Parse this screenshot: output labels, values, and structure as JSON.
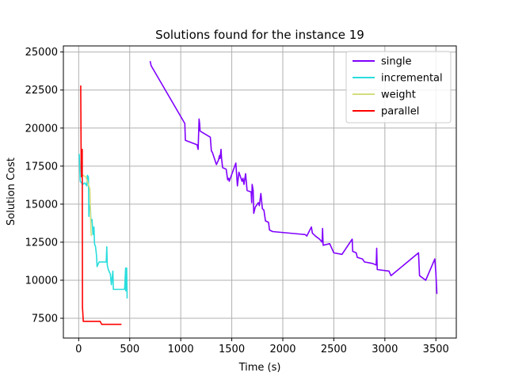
{
  "chart_data": {
    "type": "line",
    "title": "Solutions found for the instance 19",
    "xlabel": "Time (s)",
    "ylabel": "Solution Cost",
    "xlim": [
      -150,
      3700
    ],
    "ylim": [
      6200,
      25400
    ],
    "xticks": [
      0,
      500,
      1000,
      1500,
      2000,
      2500,
      3000,
      3500
    ],
    "yticks": [
      7500,
      10000,
      12500,
      15000,
      17500,
      20000,
      22500,
      25000
    ],
    "xtick_labels": [
      "0",
      "500",
      "1000",
      "1500",
      "2000",
      "2500",
      "3000",
      "3500"
    ],
    "ytick_labels": [
      "7500",
      "10000",
      "12500",
      "15000",
      "17500",
      "20000",
      "22500",
      "25000"
    ],
    "grid": true,
    "legend_position": "top-right",
    "series": [
      {
        "name": "single",
        "color": "#8000ff",
        "points": [
          [
            700,
            24400
          ],
          [
            710,
            24100
          ],
          [
            1040,
            20300
          ],
          [
            1045,
            19200
          ],
          [
            1160,
            18900
          ],
          [
            1170,
            18600
          ],
          [
            1180,
            20600
          ],
          [
            1185,
            20300
          ],
          [
            1190,
            19800
          ],
          [
            1290,
            19400
          ],
          [
            1300,
            18500
          ],
          [
            1310,
            18400
          ],
          [
            1350,
            17600
          ],
          [
            1370,
            17900
          ],
          [
            1380,
            18200
          ],
          [
            1385,
            18000
          ],
          [
            1395,
            18600
          ],
          [
            1400,
            18000
          ],
          [
            1410,
            17400
          ],
          [
            1445,
            17300
          ],
          [
            1460,
            16600
          ],
          [
            1470,
            16700
          ],
          [
            1475,
            16500
          ],
          [
            1540,
            17700
          ],
          [
            1555,
            16200
          ],
          [
            1570,
            17100
          ],
          [
            1600,
            16500
          ],
          [
            1610,
            16700
          ],
          [
            1620,
            16300
          ],
          [
            1635,
            17000
          ],
          [
            1650,
            15900
          ],
          [
            1690,
            15800
          ],
          [
            1695,
            15100
          ],
          [
            1700,
            16300
          ],
          [
            1710,
            15900
          ],
          [
            1715,
            14400
          ],
          [
            1730,
            14800
          ],
          [
            1760,
            15100
          ],
          [
            1770,
            14900
          ],
          [
            1785,
            15700
          ],
          [
            1800,
            14700
          ],
          [
            1815,
            14600
          ],
          [
            1830,
            13900
          ],
          [
            1860,
            13800
          ],
          [
            1870,
            13300
          ],
          [
            1900,
            13200
          ],
          [
            2220,
            13000
          ],
          [
            2235,
            12900
          ],
          [
            2250,
            13100
          ],
          [
            2280,
            13500
          ],
          [
            2290,
            13100
          ],
          [
            2320,
            12900
          ],
          [
            2360,
            12700
          ],
          [
            2385,
            12500
          ],
          [
            2390,
            13400
          ],
          [
            2395,
            12300
          ],
          [
            2460,
            12400
          ],
          [
            2500,
            11800
          ],
          [
            2580,
            11700
          ],
          [
            2670,
            12600
          ],
          [
            2680,
            12700
          ],
          [
            2685,
            11900
          ],
          [
            2720,
            11800
          ],
          [
            2730,
            11500
          ],
          [
            2780,
            11400
          ],
          [
            2800,
            11200
          ],
          [
            2880,
            11100
          ],
          [
            2915,
            11000
          ],
          [
            2920,
            12100
          ],
          [
            2925,
            10700
          ],
          [
            3040,
            10600
          ],
          [
            3060,
            10300
          ],
          [
            3330,
            11800
          ],
          [
            3340,
            10300
          ],
          [
            3400,
            10000
          ],
          [
            3490,
            11400
          ],
          [
            3500,
            10500
          ],
          [
            3510,
            9100
          ]
        ]
      },
      {
        "name": "incremental",
        "color": "#2adddd",
        "points": [
          [
            5,
            18300
          ],
          [
            15,
            16500
          ],
          [
            40,
            16300
          ],
          [
            60,
            16400
          ],
          [
            80,
            16200
          ],
          [
            85,
            16900
          ],
          [
            95,
            16800
          ],
          [
            100,
            14200
          ],
          [
            105,
            15000
          ],
          [
            115,
            14800
          ],
          [
            120,
            13900
          ],
          [
            130,
            14000
          ],
          [
            140,
            13000
          ],
          [
            145,
            13200
          ],
          [
            150,
            13500
          ],
          [
            155,
            12400
          ],
          [
            165,
            12200
          ],
          [
            175,
            11600
          ],
          [
            180,
            10900
          ],
          [
            200,
            11200
          ],
          [
            270,
            11200
          ],
          [
            275,
            12200
          ],
          [
            280,
            11000
          ],
          [
            290,
            10700
          ],
          [
            310,
            10400
          ],
          [
            320,
            9700
          ],
          [
            335,
            10600
          ],
          [
            340,
            9400
          ],
          [
            450,
            9400
          ],
          [
            460,
            10800
          ],
          [
            462,
            9300
          ],
          [
            470,
            10800
          ],
          [
            475,
            8800
          ]
        ]
      },
      {
        "name": "weight",
        "color": "#d4dd80",
        "points": [
          [
            20,
            17200
          ],
          [
            40,
            16900
          ],
          [
            70,
            16800
          ],
          [
            110,
            16000
          ],
          [
            115,
            14700
          ],
          [
            120,
            13200
          ],
          [
            125,
            12900
          ]
        ]
      },
      {
        "name": "parallel",
        "color": "#ff0000",
        "points": [
          [
            20,
            22800
          ],
          [
            25,
            17400
          ],
          [
            28,
            16800
          ],
          [
            32,
            17800
          ],
          [
            35,
            18600
          ],
          [
            37,
            8200
          ],
          [
            40,
            7900
          ],
          [
            45,
            7300
          ],
          [
            210,
            7300
          ],
          [
            225,
            7100
          ],
          [
            420,
            7100
          ]
        ]
      }
    ]
  }
}
